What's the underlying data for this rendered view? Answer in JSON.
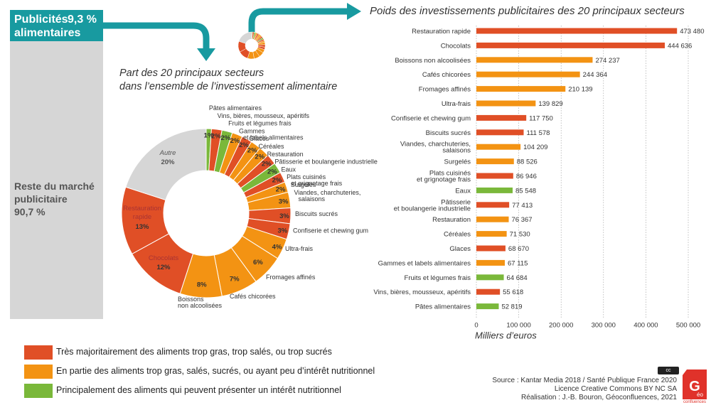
{
  "header": {
    "pub_label": "Publicités alimentaires",
    "pub_label_line1": "Publicités",
    "pub_label_line2": "alimentaires",
    "pub_value": "9,3 %",
    "reste_line1": "Reste du marché",
    "reste_line2": "publicitaire",
    "reste_value": "90,7 %"
  },
  "colors": {
    "red": "#e04f26",
    "orange": "#f39313",
    "green": "#7ab83a",
    "grey": "#d6d6d6",
    "teal": "#189aa0"
  },
  "donut_title_line1": "Part des 20 principaux secteurs",
  "donut_title_line2": "dans l’ensemble de l’investissement alimentaire",
  "bars_title": "Poids des investissements publicitaires des 20 principaux secteurs",
  "chart_data": [
    {
      "type": "pie",
      "title": "Part des 20 principaux secteurs dans l’ensemble de l’investissement alimentaire",
      "slices": [
        {
          "label": "Pâtes alimentaires",
          "pct_label": "1%",
          "value": 1,
          "group": "green"
        },
        {
          "label": "Vins, bières, mousseux, apéritifs",
          "pct_label": "2%",
          "value": 2,
          "group": "red"
        },
        {
          "label": "Fruits et légumes frais",
          "pct_label": "2%",
          "value": 2,
          "group": "green"
        },
        {
          "label": "Gammes et labels alimentaires",
          "pct_label": "2%",
          "value": 2,
          "group": "orange"
        },
        {
          "label": "Glaces",
          "pct_label": "2%",
          "value": 2,
          "group": "red"
        },
        {
          "label": "Céréales",
          "pct_label": "2%",
          "value": 2,
          "group": "orange"
        },
        {
          "label": "Restauration",
          "pct_label": "2%",
          "value": 2,
          "group": "orange"
        },
        {
          "label": "Pâtisserie et boulangerie industrielle",
          "pct_label": "2%",
          "value": 2,
          "group": "red"
        },
        {
          "label": "Eaux",
          "pct_label": "2%",
          "value": 2,
          "group": "green"
        },
        {
          "label": "Plats cuisinés et grignotage frais",
          "pct_label": "2%",
          "value": 2,
          "group": "red"
        },
        {
          "label": "Surgelés",
          "pct_label": "2%",
          "value": 2,
          "group": "orange"
        },
        {
          "label": "Viandes, charchuteries, salaisons",
          "pct_label": "3%",
          "value": 3,
          "group": "orange"
        },
        {
          "label": "Biscuits sucrés",
          "pct_label": "3%",
          "value": 3,
          "group": "red"
        },
        {
          "label": "Confiserie et chewing gum",
          "pct_label": "3%",
          "value": 3,
          "group": "red"
        },
        {
          "label": "Ultra-frais",
          "pct_label": "4%",
          "value": 4,
          "group": "orange"
        },
        {
          "label": "Fromages affinés",
          "pct_label": "6%",
          "value": 6,
          "group": "orange"
        },
        {
          "label": "Cafés chicorées",
          "pct_label": "7%",
          "value": 7,
          "group": "orange"
        },
        {
          "label": "Boissons non alcoolisées",
          "pct_label": "8%",
          "value": 8,
          "group": "orange"
        },
        {
          "label": "Chocolats",
          "pct_label": "12%",
          "value": 12,
          "group": "red"
        },
        {
          "label": "Restauration rapide",
          "pct_label": "13%",
          "value": 13,
          "group": "red"
        },
        {
          "label": "Autre",
          "pct_label": "20%",
          "value": 20,
          "group": "grey"
        }
      ]
    },
    {
      "type": "bar",
      "orientation": "horizontal",
      "title": "Poids des investissements publicitaires des 20 principaux secteurs",
      "xlabel": "Milliers d’euros",
      "xlim": [
        0,
        500000
      ],
      "xticks": [
        "0",
        "100 000",
        "200 000",
        "300 000",
        "400 000",
        "500 000"
      ],
      "grid": true,
      "bars": [
        {
          "label": "Restauration rapide",
          "value": 473480,
          "value_label": "473 480",
          "group": "red"
        },
        {
          "label": "Chocolats",
          "value": 444636,
          "value_label": "444 636",
          "group": "red"
        },
        {
          "label": "Boissons non alcoolisées",
          "value": 274237,
          "value_label": "274 237",
          "group": "orange"
        },
        {
          "label": "Cafés chicorées",
          "value": 244364,
          "value_label": "244 364",
          "group": "orange"
        },
        {
          "label": "Fromages affinés",
          "value": 210139,
          "value_label": "210 139",
          "group": "orange"
        },
        {
          "label": "Ultra-frais",
          "value": 139829,
          "value_label": "139 829",
          "group": "orange"
        },
        {
          "label": "Confiserie et chewing gum",
          "value": 117750,
          "value_label": "117 750",
          "group": "red"
        },
        {
          "label": "Biscuits sucrés",
          "value": 111578,
          "value_label": "111 578",
          "group": "red"
        },
        {
          "label": "Viandes, charchuteries, salaisons",
          "value": 104209,
          "value_label": "104 209",
          "group": "orange"
        },
        {
          "label": "Surgelés",
          "value": 88526,
          "value_label": "88 526",
          "group": "orange"
        },
        {
          "label": "Plats cuisinés et grignotage frais",
          "value": 86946,
          "value_label": "86 946",
          "group": "red"
        },
        {
          "label": "Eaux",
          "value": 85548,
          "value_label": "85 548",
          "group": "green"
        },
        {
          "label": "Pâtisserie et boulangerie industrielle",
          "value": 77413,
          "value_label": "77 413",
          "group": "red"
        },
        {
          "label": "Restauration",
          "value": 76367,
          "value_label": "76 367",
          "group": "orange"
        },
        {
          "label": "Céréales",
          "value": 71530,
          "value_label": "71 530",
          "group": "orange"
        },
        {
          "label": "Glaces",
          "value": 68670,
          "value_label": "68 670",
          "group": "red"
        },
        {
          "label": "Gammes et labels alimentaires",
          "value": 67115,
          "value_label": "67 115",
          "group": "orange"
        },
        {
          "label": "Fruits et légumes frais",
          "value": 64684,
          "value_label": "64 684",
          "group": "green"
        },
        {
          "label": "Vins, bières, mousseux, apéritifs",
          "value": 55618,
          "value_label": "55 618",
          "group": "red"
        },
        {
          "label": "Pâtes alimentaires",
          "value": 52819,
          "value_label": "52 819",
          "group": "green"
        }
      ]
    }
  ],
  "legend": [
    {
      "label": "Très majoritairement des aliments trop gras, trop salés, ou trop sucrés",
      "group": "red"
    },
    {
      "label": "En partie des aliments trop gras, salés, sucrés, ou ayant peu d’intérêt nutritionnel",
      "group": "orange"
    },
    {
      "label": "Principalement des aliments qui peuvent présenter un intérêt nutritionnel",
      "group": "green"
    }
  ],
  "credits": {
    "source": "Source : Kantar Media 2018 / Santé Publique France 2020",
    "licence": "Licence Creative Commons BY NC SA",
    "realisation": "Réalisation : J.-B. Bouron, Géoconfluences, 2021",
    "cc_badge": "cc",
    "logo_text": "Géo confluences"
  }
}
